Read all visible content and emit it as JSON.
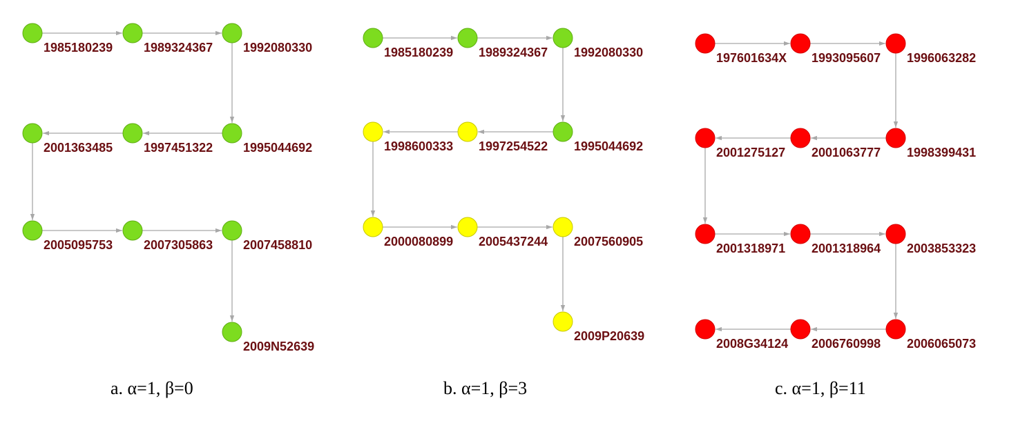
{
  "panels": [
    {
      "caption": "a. α=1, β=0",
      "nodes": [
        {
          "label": "1985180239",
          "color": "#7ddc1f"
        },
        {
          "label": "1989324367",
          "color": "#7ddc1f"
        },
        {
          "label": "1992080330",
          "color": "#7ddc1f"
        },
        {
          "label": "1995044692",
          "color": "#7ddc1f"
        },
        {
          "label": "1997451322",
          "color": "#7ddc1f"
        },
        {
          "label": "2001363485",
          "color": "#7ddc1f"
        },
        {
          "label": "2005095753",
          "color": "#7ddc1f"
        },
        {
          "label": "2007305863",
          "color": "#7ddc1f"
        },
        {
          "label": "2007458810",
          "color": "#7ddc1f"
        },
        {
          "label": "2009N52639",
          "color": "#7ddc1f"
        }
      ],
      "edges": [
        [
          0,
          1
        ],
        [
          1,
          2
        ],
        [
          2,
          3
        ],
        [
          3,
          4
        ],
        [
          4,
          5
        ],
        [
          5,
          6
        ],
        [
          6,
          7
        ],
        [
          7,
          8
        ],
        [
          8,
          9
        ]
      ]
    },
    {
      "caption": "b. α=1, β=3",
      "nodes": [
        {
          "label": "1985180239",
          "color": "#7ddc1f"
        },
        {
          "label": "1989324367",
          "color": "#7ddc1f"
        },
        {
          "label": "1992080330",
          "color": "#7ddc1f"
        },
        {
          "label": "1995044692",
          "color": "#7ddc1f"
        },
        {
          "label": "1997254522",
          "color": "#ffff00"
        },
        {
          "label": "1998600333",
          "color": "#ffff00"
        },
        {
          "label": "2000080899",
          "color": "#ffff00"
        },
        {
          "label": "2005437244",
          "color": "#ffff00"
        },
        {
          "label": "2007560905",
          "color": "#ffff00"
        },
        {
          "label": "2009P20639",
          "color": "#ffff00"
        }
      ],
      "edges": [
        [
          0,
          1
        ],
        [
          1,
          2
        ],
        [
          2,
          3
        ],
        [
          3,
          4
        ],
        [
          4,
          5
        ],
        [
          5,
          6
        ],
        [
          6,
          7
        ],
        [
          7,
          8
        ],
        [
          8,
          9
        ]
      ]
    },
    {
      "caption": "c. α=1, β=11",
      "nodes": [
        {
          "label": "197601634X",
          "color": "#ff0000"
        },
        {
          "label": "1993095607",
          "color": "#ff0000"
        },
        {
          "label": "1996063282",
          "color": "#ff0000"
        },
        {
          "label": "1998399431",
          "color": "#ff0000"
        },
        {
          "label": "2001063777",
          "color": "#ff0000"
        },
        {
          "label": "2001275127",
          "color": "#ff0000"
        },
        {
          "label": "2001318971",
          "color": "#ff0000"
        },
        {
          "label": "2001318964",
          "color": "#ff0000"
        },
        {
          "label": "2003853323",
          "color": "#ff0000"
        },
        {
          "label": "2006065073",
          "color": "#ff0000"
        },
        {
          "label": "2006760998",
          "color": "#ff0000"
        },
        {
          "label": "2008G34124",
          "color": "#ff0000"
        }
      ],
      "edges": [
        [
          0,
          1
        ],
        [
          1,
          2
        ],
        [
          2,
          3
        ],
        [
          3,
          4
        ],
        [
          4,
          5
        ],
        [
          5,
          6
        ],
        [
          6,
          7
        ],
        [
          7,
          8
        ],
        [
          8,
          9
        ],
        [
          9,
          10
        ],
        [
          10,
          11
        ]
      ]
    }
  ],
  "colors": {
    "green_node": "#7ddc1f",
    "yellow_node": "#ffff00",
    "red_node": "#ff0000",
    "label": "#6b0f12",
    "edge": "#a8a8a8"
  }
}
